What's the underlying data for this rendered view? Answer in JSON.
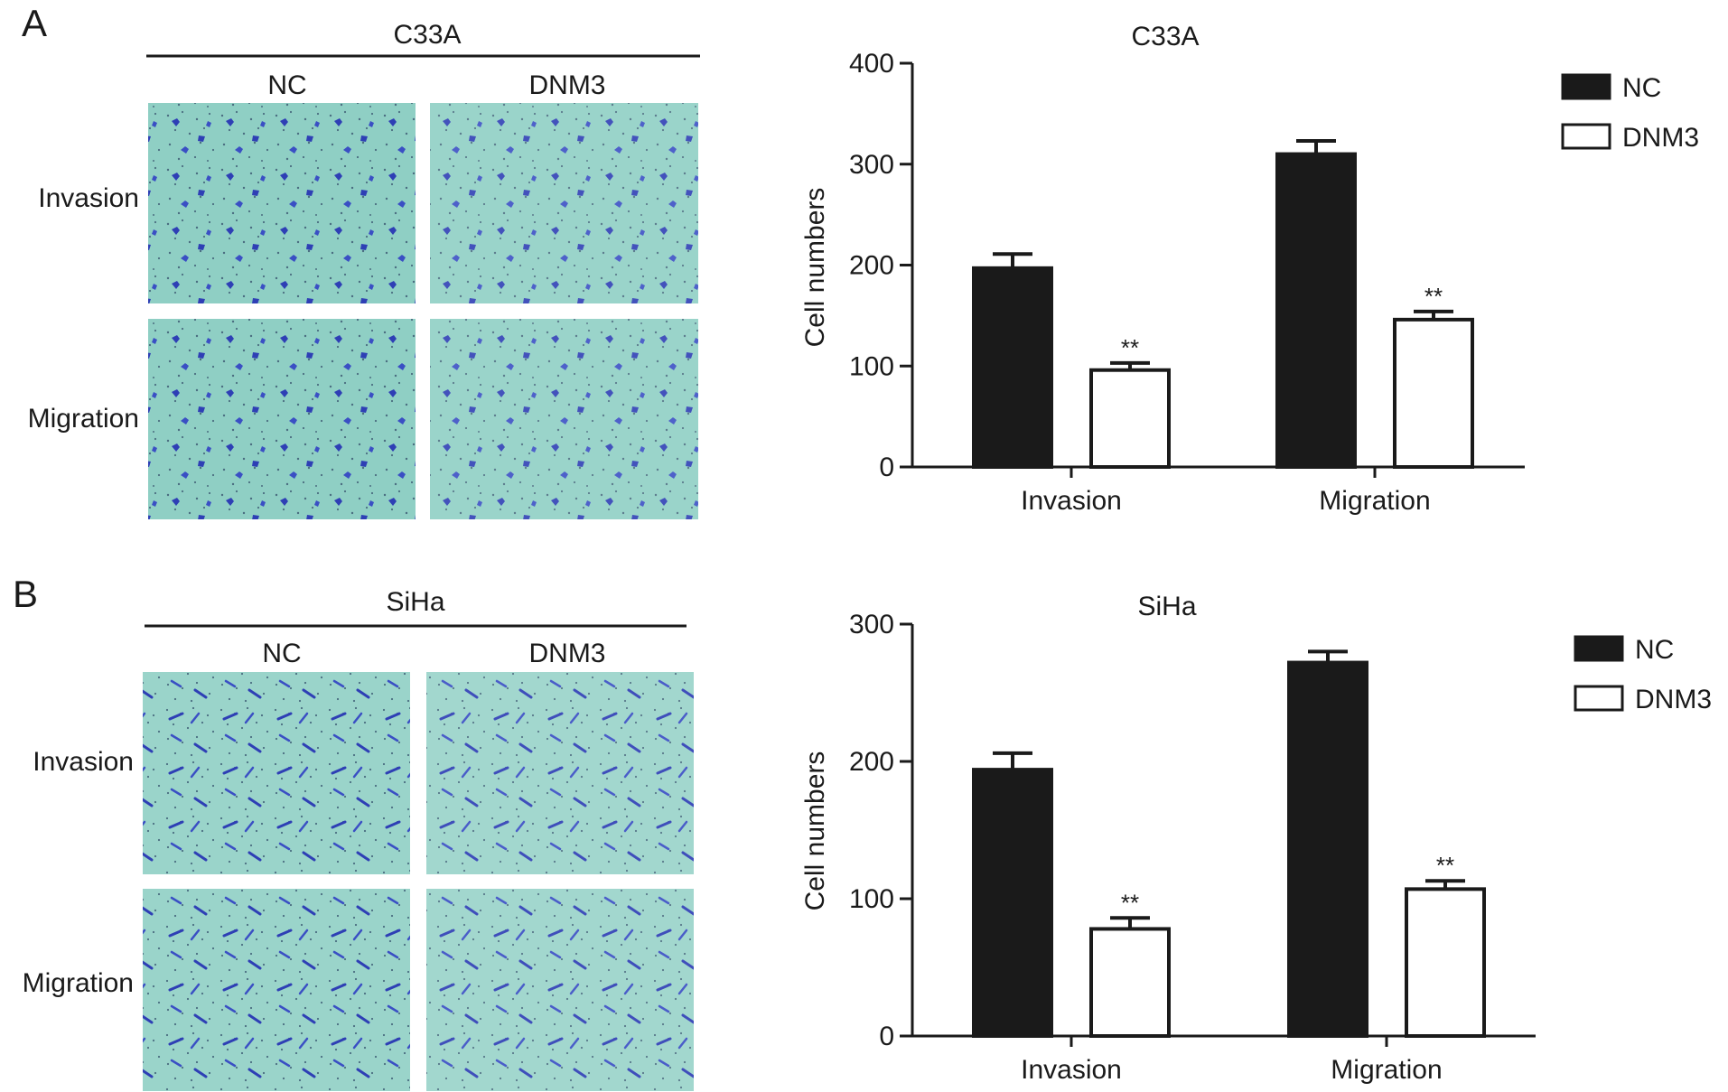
{
  "panels": [
    {
      "letter": "A",
      "cell_line": "C33A",
      "image_columns": [
        "NC",
        "DNM3"
      ],
      "image_rows": [
        "Invasion",
        "Migration"
      ]
    },
    {
      "letter": "B",
      "cell_line": "SiHa",
      "image_columns": [
        "NC",
        "DNM3"
      ],
      "image_rows": [
        "Invasion",
        "Migration"
      ]
    }
  ],
  "colors": {
    "nc_bar": "#1a1a1a",
    "dnm3_bar": "#ffffff",
    "stain_background": "#8fcfc4",
    "stain_cells": "#2e3fb5"
  },
  "chart_data": [
    {
      "type": "bar",
      "title": "C33A",
      "xlabel": "",
      "ylabel": "Cell numbers",
      "categories": [
        "Invasion",
        "Migration"
      ],
      "series": [
        {
          "name": "NC",
          "values": [
            197,
            310
          ],
          "errors": [
            14,
            13
          ]
        },
        {
          "name": "DNM3",
          "values": [
            96,
            146
          ],
          "errors": [
            7,
            8
          ]
        }
      ],
      "significance": [
        "**",
        "**"
      ],
      "ylim": [
        0,
        400
      ],
      "yticks": [
        0,
        100,
        200,
        300,
        400
      ],
      "legend_position": "top-right",
      "grid": false
    },
    {
      "type": "bar",
      "title": "SiHa",
      "xlabel": "",
      "ylabel": "Cell numbers",
      "categories": [
        "Invasion",
        "Migration"
      ],
      "series": [
        {
          "name": "NC",
          "values": [
            194,
            272
          ],
          "errors": [
            12,
            8
          ]
        },
        {
          "name": "DNM3",
          "values": [
            78,
            107
          ],
          "errors": [
            8,
            6
          ]
        }
      ],
      "significance": [
        "**",
        "**"
      ],
      "ylim": [
        0,
        300
      ],
      "yticks": [
        0,
        100,
        200,
        300
      ],
      "legend_position": "top-right",
      "grid": false
    }
  ]
}
